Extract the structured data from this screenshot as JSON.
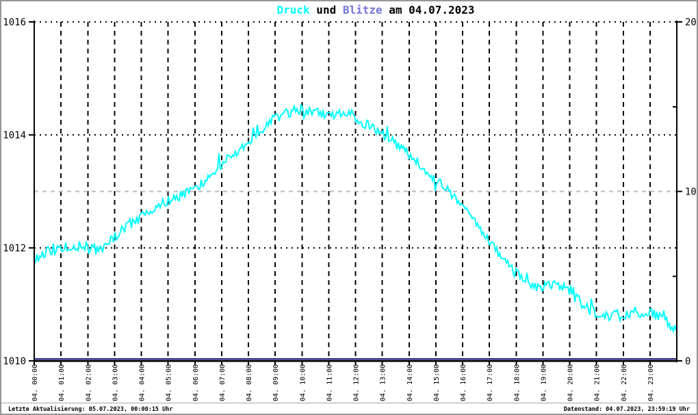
{
  "title": {
    "druck": "Druck",
    "und": " und ",
    "blitze": "Blitze",
    "date_suffix": " am 04.07.2023"
  },
  "footer": {
    "left": "Letzte Aktualisierung: 05.07.2023, 00:00:15 Uhr",
    "right": "Datenstand: 04.07.2023, 23:59:19 Uhr"
  },
  "colors": {
    "druck_series": "#00FFFF",
    "blitze_label": "#7575DD",
    "blitze_series": "#2B2B8F",
    "grid_black": "#000000",
    "grid_gray": "#BBBBBB",
    "axis": "#000000",
    "text": "#000000",
    "background": "#FFFFFF",
    "frame_border": "#979797"
  },
  "chart_data": {
    "type": "line",
    "title": "Druck und Blitze am 04.07.2023",
    "x_axis": {
      "labels": [
        "04. 00:00",
        "04. 01:00",
        "04. 02:00",
        "04. 03:00",
        "04. 04:00",
        "04. 05:00",
        "04. 06:00",
        "04. 07:00",
        "04. 08:00",
        "04. 09:00",
        "04. 10:00",
        "04. 11:00",
        "04. 12:00",
        "04. 13:00",
        "04. 14:00",
        "04. 15:00",
        "04. 16:00",
        "04. 17:00",
        "04. 18:00",
        "04. 19:00",
        "04. 20:00",
        "04. 21:00",
        "04. 22:00",
        "04. 23:00"
      ],
      "hours_range": [
        0,
        24
      ],
      "tick_rotation_deg": -90,
      "grid": "dashed-black-every-hour"
    },
    "y_left": {
      "name": "Druck",
      "range": [
        1010,
        1016
      ],
      "ticks": [
        1010,
        1012,
        1014,
        1016
      ],
      "dotted_gridlines": [
        1012,
        1014,
        1016
      ]
    },
    "y_right": {
      "name": "Blitze",
      "range": [
        0,
        20
      ],
      "ticks": [
        0,
        10,
        20
      ],
      "minor_ticks": [
        5,
        15
      ],
      "gray_gridline_at": 10
    },
    "series": [
      {
        "name": "Druck",
        "axis": "left",
        "color": "#00FFFF",
        "style": "noisy-line",
        "x_hours": [
          0,
          0.5,
          1,
          1.5,
          2,
          2.5,
          3,
          3.5,
          4,
          4.5,
          5,
          5.5,
          6,
          6.5,
          7,
          7.5,
          8,
          8.5,
          9,
          9.5,
          10,
          10.5,
          11,
          11.5,
          12,
          12.5,
          13,
          13.5,
          14,
          14.5,
          15,
          15.5,
          16,
          16.5,
          17,
          17.5,
          18,
          18.5,
          19,
          19.5,
          20,
          20.5,
          21,
          21.5,
          22,
          22.5,
          23,
          23.5,
          24
        ],
        "values": [
          1011.8,
          1011.95,
          1012.0,
          1012.05,
          1012.0,
          1011.95,
          1012.2,
          1012.4,
          1012.55,
          1012.7,
          1012.8,
          1012.95,
          1013.05,
          1013.25,
          1013.5,
          1013.65,
          1013.85,
          1014.1,
          1014.3,
          1014.4,
          1014.45,
          1014.4,
          1014.35,
          1014.4,
          1014.3,
          1014.15,
          1014.0,
          1013.85,
          1013.65,
          1013.45,
          1013.2,
          1013.0,
          1012.75,
          1012.45,
          1012.1,
          1011.8,
          1011.55,
          1011.35,
          1011.3,
          1011.35,
          1011.25,
          1011.0,
          1010.85,
          1010.8,
          1010.8,
          1010.85,
          1010.85,
          1010.75,
          1010.55
        ]
      },
      {
        "name": "Blitze",
        "axis": "right",
        "color": "#2B2B8F",
        "style": "flat-line",
        "x_hours": [
          0,
          24
        ],
        "values": [
          0,
          0
        ]
      }
    ],
    "legend_position": "none (series named in title)"
  }
}
